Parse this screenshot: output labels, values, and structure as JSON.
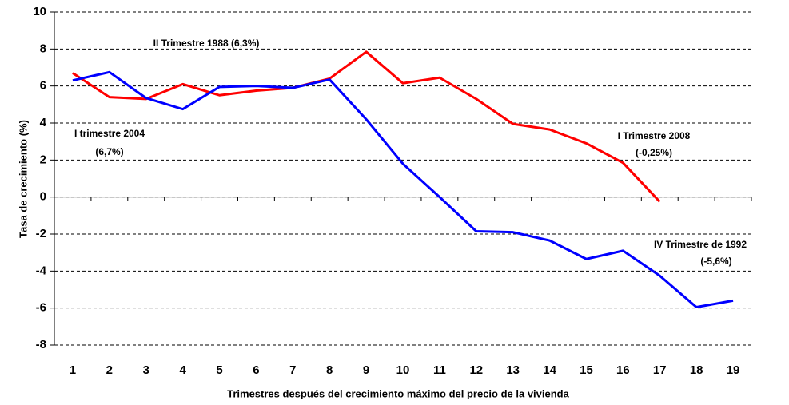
{
  "chart_data": {
    "type": "line",
    "y_label": "Tasa de crecimiento (%)",
    "x_label": "Trimestres después del crecimiento máximo del precio de la vivienda",
    "categories": [
      1,
      2,
      3,
      4,
      5,
      6,
      7,
      8,
      9,
      10,
      11,
      12,
      13,
      14,
      15,
      16,
      17,
      18,
      19
    ],
    "series": [
      {
        "color": "#ff0000",
        "values": [
          6.7,
          5.4,
          5.3,
          6.1,
          5.5,
          5.75,
          5.9,
          6.4,
          7.85,
          6.15,
          6.45,
          5.3,
          3.95,
          3.65,
          2.9,
          1.85,
          -0.25,
          null,
          null
        ]
      },
      {
        "color": "#0000ff",
        "values": [
          6.3,
          6.75,
          5.35,
          4.75,
          5.95,
          6.0,
          5.9,
          6.35,
          4.2,
          1.8,
          0.0,
          -1.85,
          -1.9,
          -2.35,
          -3.35,
          -2.9,
          -4.25,
          -5.95,
          -5.6
        ]
      }
    ],
    "ylim": [
      -8,
      10
    ],
    "yticks": [
      -8,
      -6,
      -4,
      -2,
      0,
      2,
      4,
      6,
      8,
      10
    ],
    "grid": true,
    "annotations": [
      [
        "II Trimestre 1988 (6,3%)"
      ],
      [
        "I trimestre 2004",
        "(6,7%)"
      ],
      [
        "I Trimestre 2008",
        "(-0,25%)"
      ],
      [
        "IV Trimestre de 1992",
        "(-5,6%)"
      ]
    ]
  }
}
